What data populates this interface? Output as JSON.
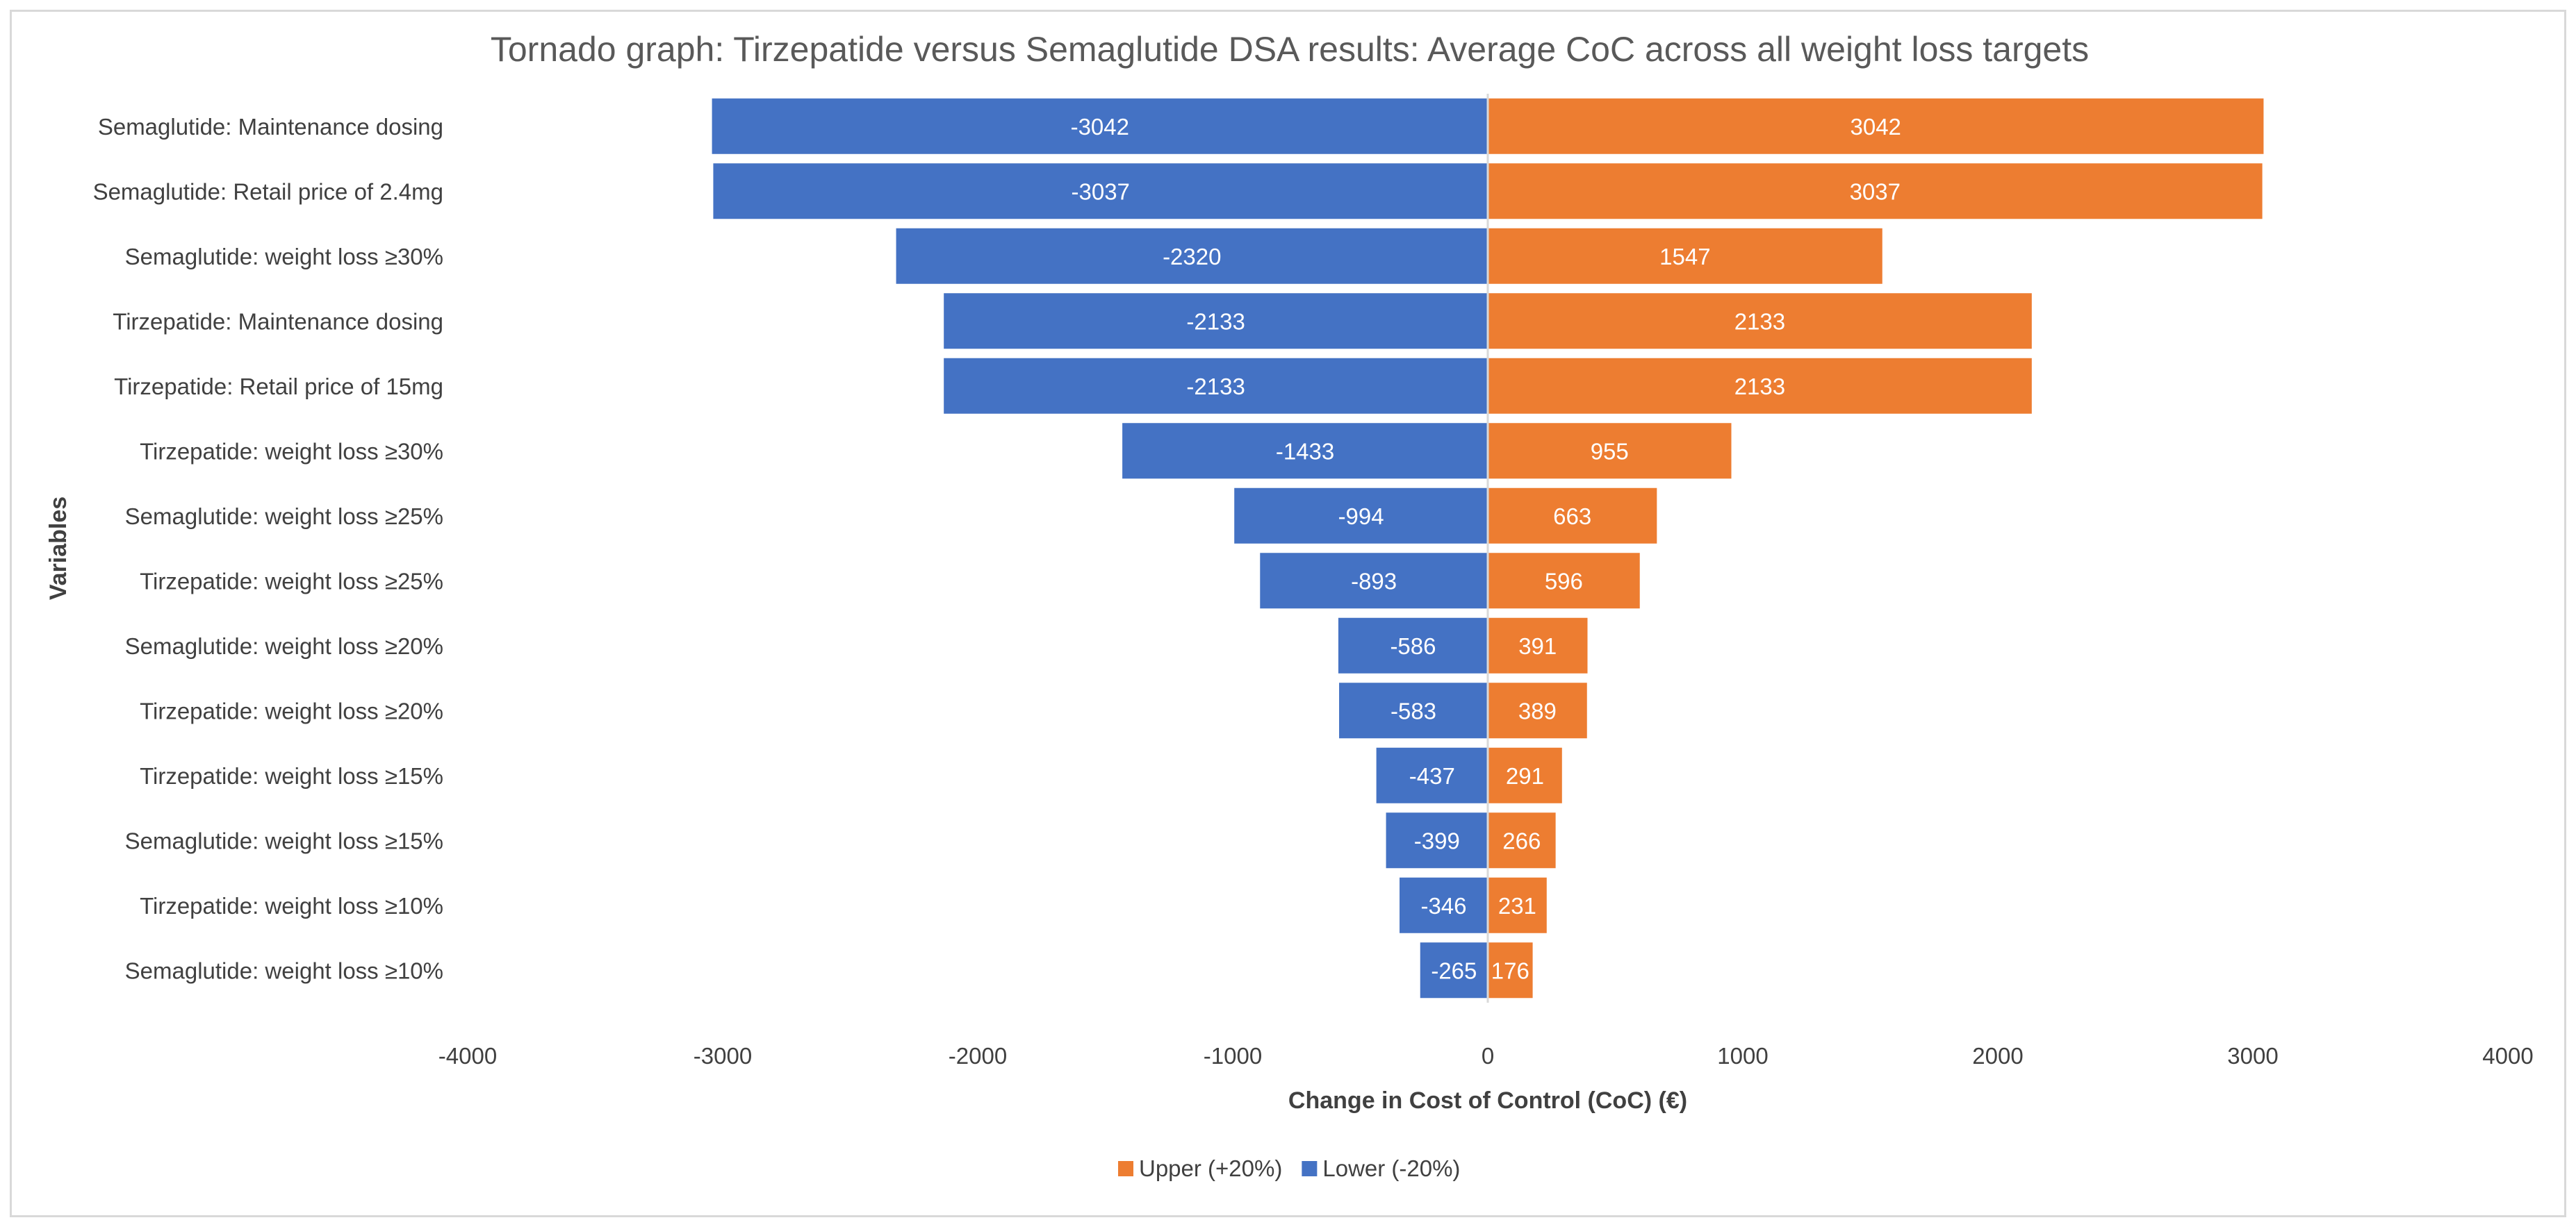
{
  "chart_data": {
    "type": "bar",
    "orientation": "horizontal",
    "stacked": true,
    "title": "Tornado graph: Tirzepatide versus Semaglutide DSA results: Average CoC across all weight loss targets",
    "xlabel": "Change in Cost of Control (CoC) (€)",
    "ylabel": "Variables",
    "xlim": [
      -4000,
      4000
    ],
    "xticks": [
      -4000,
      -3000,
      -2000,
      -1000,
      0,
      1000,
      2000,
      3000,
      4000
    ],
    "xtick_labels": [
      "-4000",
      "-3000",
      "-2000",
      "-1000",
      "0",
      "1000",
      "2000",
      "3000",
      "4000"
    ],
    "grid": false,
    "legend_position": "bottom",
    "categories": [
      "Semaglutide: Maintenance dosing",
      "Semaglutide: Retail price of 2.4mg",
      "Semaglutide: weight loss ≥30%",
      "Tirzepatide: Maintenance dosing",
      "Tirzepatide: Retail price of 15mg",
      "Tirzepatide: weight loss ≥30%",
      "Semaglutide: weight loss ≥25%",
      "Tirzepatide: weight loss ≥25%",
      "Semaglutide: weight loss ≥20%",
      "Tirzepatide: weight loss ≥20%",
      "Tirzepatide: weight loss ≥15%",
      "Semaglutide: weight loss ≥15%",
      "Tirzepatide: weight loss ≥10%",
      "Semaglutide: weight loss ≥10%"
    ],
    "series": [
      {
        "name": "Upper (+20%)",
        "color": "#ED7D31",
        "values": [
          3042,
          3037,
          1547,
          2133,
          2133,
          955,
          663,
          596,
          391,
          389,
          291,
          266,
          231,
          176
        ],
        "labels": [
          "3042",
          "3037",
          "1547",
          "2133",
          "2133",
          "955",
          "663",
          "596",
          "391",
          "389",
          "291",
          "266",
          "231",
          "176"
        ]
      },
      {
        "name": "Lower (-20%)",
        "color": "#4472C4",
        "values": [
          -3042,
          -3037,
          -2320,
          -2133,
          -2133,
          -1433,
          -994,
          -893,
          -586,
          -583,
          -437,
          -399,
          -346,
          -265
        ],
        "labels": [
          "-3042",
          "-3037",
          "-2320",
          "-2133",
          "-2133",
          "-1433",
          "-994",
          "-893",
          "-586",
          "-583",
          "-437",
          "-399",
          "-346",
          "-265"
        ]
      }
    ]
  }
}
